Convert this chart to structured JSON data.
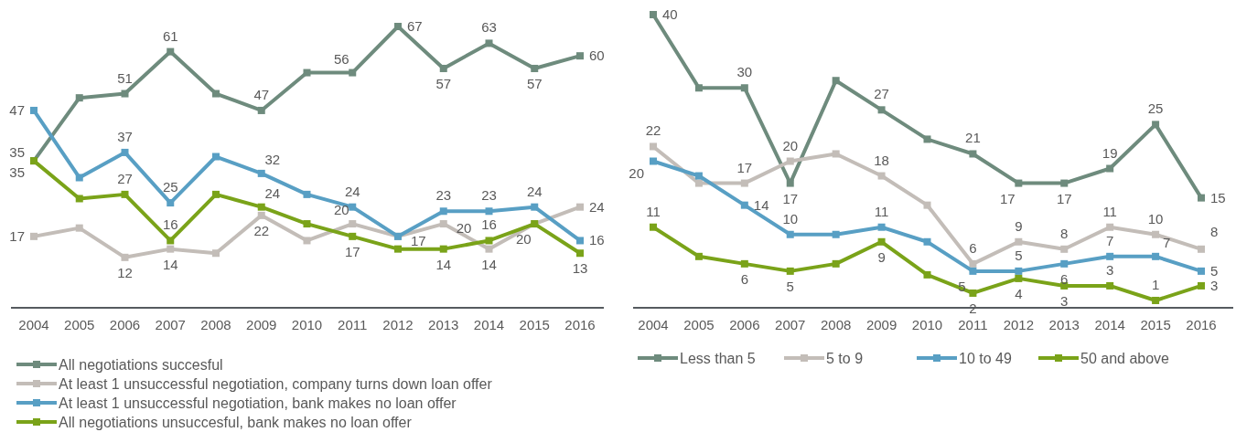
{
  "chart_data": [
    {
      "type": "line",
      "categories": [
        "2004",
        "2005",
        "2006",
        "2007",
        "2008",
        "2009",
        "2010",
        "2011",
        "2012",
        "2013",
        "2014",
        "2015",
        "2016"
      ],
      "tick_labels": "x",
      "marker": "square",
      "line_style": "solid",
      "legend": "bottom",
      "series": [
        {
          "name": "All negotiations succesful",
          "color": "#6e8b7d",
          "values": [
            35,
            50,
            51,
            61,
            51,
            47,
            56,
            56,
            67,
            57,
            63,
            57,
            60
          ],
          "value_labels": [
            "35",
            null,
            "51",
            "61",
            null,
            "47",
            null,
            "56",
            "67",
            "57",
            "63",
            "57",
            "60"
          ]
        },
        {
          "name": "At least 1 unsuccessful negotiation, company turns down loan offer",
          "color": "#c3bdb8",
          "values": [
            17,
            19,
            12,
            14,
            13,
            22,
            16,
            20,
            17,
            20,
            14,
            20,
            24
          ],
          "value_labels": [
            "17",
            null,
            "12",
            "14",
            null,
            "22",
            null,
            "20",
            "17",
            "20",
            "14",
            null,
            "24"
          ]
        },
        {
          "name": "At least 1 unsuccessful negotiation, bank makes no loan offer",
          "color": "#589fc4",
          "values": [
            47,
            31,
            37,
            25,
            36,
            32,
            27,
            24,
            17,
            23,
            23,
            24,
            16
          ],
          "value_labels": [
            "47",
            null,
            "37",
            "25",
            null,
            "32",
            null,
            "24",
            null,
            "23",
            "23",
            "24",
            "16"
          ]
        },
        {
          "name": "All negotiations unsuccesful, bank makes no loan offer",
          "color": "#7aa319",
          "values": [
            35,
            26,
            27,
            16,
            27,
            24,
            20,
            17,
            14,
            14,
            16,
            20,
            13
          ],
          "value_labels": [
            "35",
            null,
            "27",
            "16",
            null,
            "24",
            null,
            "17",
            null,
            "14",
            "16",
            "20",
            "13"
          ]
        }
      ]
    },
    {
      "type": "line",
      "categories": [
        "2004",
        "2005",
        "2006",
        "2007",
        "2008",
        "2009",
        "2010",
        "2011",
        "2012",
        "2013",
        "2014",
        "2015",
        "2016"
      ],
      "tick_labels": "x",
      "marker": "square",
      "line_style": "solid",
      "legend": "bottom",
      "series": [
        {
          "name": "Less than 5",
          "color": "#6e8b7d",
          "values": [
            40,
            30,
            30,
            17,
            31,
            27,
            23,
            21,
            17,
            17,
            19,
            25,
            15
          ],
          "value_labels": [
            "40",
            null,
            "30",
            "17",
            null,
            "27",
            null,
            "21",
            "17",
            "17",
            "19",
            "25",
            "15"
          ]
        },
        {
          "name": "5 to 9",
          "color": "#c3bdb8",
          "values": [
            22,
            17,
            17,
            20,
            21,
            18,
            14,
            6,
            9,
            8,
            11,
            10,
            8
          ],
          "value_labels": [
            "22",
            null,
            "17",
            "20",
            null,
            "18",
            null,
            "6",
            "9",
            "8",
            "11",
            "10",
            "8"
          ]
        },
        {
          "name": "10 to 49",
          "color": "#589fc4",
          "values": [
            20,
            18,
            14,
            10,
            10,
            11,
            9,
            5,
            5,
            6,
            7,
            7,
            5
          ],
          "value_labels": [
            "20",
            null,
            "14",
            "10",
            null,
            "11",
            null,
            "5",
            "5",
            "6",
            "7",
            "7",
            "5"
          ]
        },
        {
          "name": "50 and above",
          "color": "#7aa319",
          "values": [
            11,
            7,
            6,
            5,
            6,
            9,
            4.5,
            2,
            4,
            3,
            3,
            1,
            3
          ],
          "value_labels": [
            "11",
            null,
            "6",
            "5",
            null,
            "9",
            null,
            "2",
            "4",
            "3",
            "3",
            "1",
            "3"
          ]
        }
      ]
    }
  ]
}
